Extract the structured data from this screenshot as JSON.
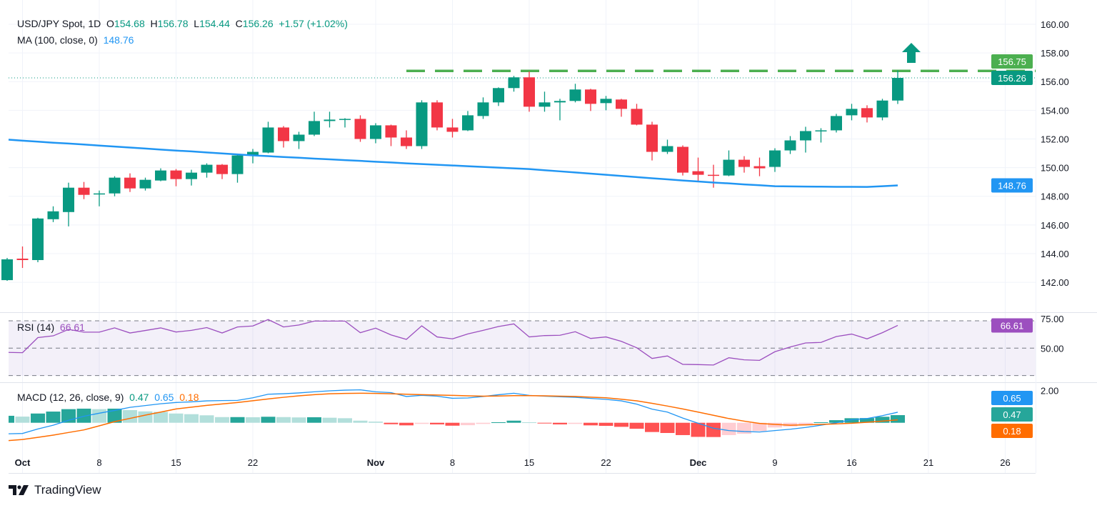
{
  "header": {
    "symbol": "USD/JPY Spot, 1D",
    "open_label": "O",
    "open": "154.68",
    "high_label": "H",
    "high": "156.78",
    "low_label": "L",
    "low": "154.44",
    "close_label": "C",
    "close": "156.26",
    "change": "+1.57 (+1.02%)",
    "ma_label": "MA (100, close, 0)",
    "ma_value": "148.76"
  },
  "rsi_legend": {
    "label": "RSI (14)",
    "value": "66.61"
  },
  "macd_legend": {
    "label": "MACD (12, 26, close, 9)",
    "hist": "0.47",
    "macd": "0.65",
    "signal": "0.18"
  },
  "brand": {
    "name": "TradingView"
  },
  "colors": {
    "up": "#089981",
    "down": "#f23645",
    "ma": "#2196f3",
    "resistance": "#4caf50",
    "rsi": "#9c4fbf",
    "macd": "#2196f3",
    "signal": "#ff6d00",
    "hist_up_strong": "#26a69a",
    "hist_up_weak": "#b2dfdb",
    "hist_down_strong": "#ff5252",
    "hist_down_weak": "#ffcdd2"
  },
  "chart_data": [
    {
      "type": "candlestick",
      "title": "USD/JPY Spot, 1D",
      "ylim": [
        141,
        161.5
      ],
      "y_ticks": [
        "160.00",
        "158.00",
        "156.00",
        "154.00",
        "152.00",
        "150.00",
        "148.00",
        "146.00",
        "144.00",
        "142.00"
      ],
      "x_ticks": [
        {
          "label": "Oct",
          "bar": 1
        },
        {
          "label": "8",
          "bar": 6
        },
        {
          "label": "15",
          "bar": 11
        },
        {
          "label": "22",
          "bar": 16
        },
        {
          "label": "Nov",
          "bar": 24
        },
        {
          "label": "8",
          "bar": 29
        },
        {
          "label": "15",
          "bar": 34
        },
        {
          "label": "22",
          "bar": 39
        },
        {
          "label": "Dec",
          "bar": 45
        },
        {
          "label": "9",
          "bar": 50
        },
        {
          "label": "16",
          "bar": 55
        },
        {
          "label": "21",
          "bar": 60
        },
        {
          "label": "26",
          "bar": 65
        }
      ],
      "ohlc": [
        [
          142.15,
          143.7,
          142.1,
          143.6
        ],
        [
          143.65,
          144.5,
          143.0,
          143.55
        ],
        [
          143.55,
          146.5,
          143.4,
          146.45
        ],
        [
          146.4,
          147.3,
          146.2,
          146.95
        ],
        [
          146.9,
          148.95,
          145.9,
          148.6
        ],
        [
          148.6,
          149.0,
          147.8,
          148.1
        ],
        [
          148.15,
          148.4,
          147.3,
          148.2
        ],
        [
          148.2,
          149.4,
          148.0,
          149.3
        ],
        [
          149.3,
          149.6,
          148.3,
          148.55
        ],
        [
          148.55,
          149.3,
          148.4,
          149.15
        ],
        [
          149.1,
          149.95,
          149.05,
          149.8
        ],
        [
          149.8,
          149.9,
          148.7,
          149.2
        ],
        [
          149.2,
          149.85,
          148.75,
          149.65
        ],
        [
          149.65,
          150.3,
          149.3,
          150.2
        ],
        [
          150.2,
          150.25,
          149.2,
          149.55
        ],
        [
          149.55,
          150.9,
          148.95,
          150.85
        ],
        [
          150.85,
          151.3,
          150.3,
          151.1
        ],
        [
          151.05,
          153.2,
          151.0,
          152.8
        ],
        [
          152.8,
          152.9,
          151.4,
          151.85
        ],
        [
          151.85,
          152.5,
          151.3,
          152.3
        ],
        [
          152.3,
          153.9,
          152.2,
          153.25
        ],
        [
          153.25,
          153.9,
          152.8,
          153.35
        ],
        [
          153.35,
          153.45,
          152.8,
          153.4
        ],
        [
          153.4,
          153.65,
          151.8,
          152.0
        ],
        [
          152.0,
          153.1,
          151.7,
          152.95
        ],
        [
          152.95,
          153.0,
          151.5,
          152.1
        ],
        [
          152.1,
          152.6,
          151.3,
          151.5
        ],
        [
          151.5,
          154.7,
          151.3,
          154.55
        ],
        [
          154.55,
          154.7,
          152.6,
          152.8
        ],
        [
          152.8,
          153.4,
          152.1,
          152.5
        ],
        [
          152.6,
          153.95,
          152.55,
          153.65
        ],
        [
          153.6,
          154.9,
          153.4,
          154.55
        ],
        [
          154.55,
          155.6,
          154.3,
          155.55
        ],
        [
          155.55,
          156.4,
          155.3,
          156.3
        ],
        [
          156.3,
          156.7,
          153.9,
          154.25
        ],
        [
          154.25,
          155.3,
          153.9,
          154.55
        ],
        [
          154.55,
          154.8,
          153.3,
          154.65
        ],
        [
          154.65,
          155.85,
          154.55,
          155.45
        ],
        [
          155.45,
          155.5,
          153.95,
          154.45
        ],
        [
          154.5,
          155.0,
          154.0,
          154.8
        ],
        [
          154.75,
          154.8,
          153.55,
          154.1
        ],
        [
          154.1,
          154.45,
          152.95,
          153.0
        ],
        [
          153.0,
          153.2,
          150.5,
          151.1
        ],
        [
          151.1,
          151.95,
          150.95,
          151.5
        ],
        [
          151.45,
          151.55,
          149.45,
          149.65
        ],
        [
          149.75,
          150.7,
          149.05,
          149.5
        ],
        [
          149.5,
          150.2,
          148.6,
          149.45
        ],
        [
          149.45,
          151.2,
          149.4,
          150.55
        ],
        [
          150.55,
          150.8,
          149.65,
          150.05
        ],
        [
          150.1,
          150.7,
          149.4,
          149.95
        ],
        [
          150.05,
          151.35,
          149.7,
          151.2
        ],
        [
          151.2,
          152.2,
          150.95,
          151.9
        ],
        [
          151.9,
          152.85,
          151.05,
          152.55
        ],
        [
          152.55,
          152.75,
          151.75,
          152.6
        ],
        [
          152.6,
          153.75,
          152.45,
          153.6
        ],
        [
          153.65,
          154.45,
          153.3,
          154.1
        ],
        [
          154.15,
          154.35,
          153.15,
          153.5
        ],
        [
          153.5,
          154.8,
          153.3,
          154.68
        ],
        [
          154.68,
          156.78,
          154.44,
          156.26
        ]
      ],
      "series": [
        {
          "name": "MA (100, close, 0)",
          "values": [
            151.95,
            151.88,
            151.81,
            151.74,
            151.68,
            151.61,
            151.54,
            151.47,
            151.4,
            151.33,
            151.26,
            151.19,
            151.13,
            151.06,
            150.99,
            150.92,
            150.85,
            150.8,
            150.74,
            150.69,
            150.63,
            150.58,
            150.52,
            150.47,
            150.41,
            150.36,
            150.3,
            150.25,
            150.2,
            150.15,
            150.1,
            150.05,
            150.0,
            149.95,
            149.9,
            149.82,
            149.74,
            149.66,
            149.58,
            149.5,
            149.42,
            149.34,
            149.26,
            149.18,
            149.1,
            149.03,
            148.96,
            148.9,
            148.83,
            148.77,
            148.7,
            148.69,
            148.68,
            148.67,
            148.66,
            148.66,
            148.65,
            148.7,
            148.76
          ]
        }
      ],
      "price_labels": [
        {
          "value": "156.75",
          "kind": "resistance"
        },
        {
          "value": "156.26",
          "kind": "last"
        },
        {
          "value": "148.76",
          "kind": "ma"
        }
      ],
      "annotations": {
        "resistance_level": 156.75,
        "resistance_from_bar": 26,
        "last_price": 156.26,
        "arrow": "up"
      }
    },
    {
      "type": "line",
      "title": "RSI (14)",
      "ylim": [
        26.5,
        75.5
      ],
      "y_ticks": [
        "75.00",
        "50.00"
      ],
      "bands": [
        70,
        50,
        30
      ],
      "values": [
        46.9,
        46.7,
        57.7,
        59.0,
        63.7,
        61.7,
        61.7,
        64.8,
        61.1,
        62.9,
        64.8,
        61.8,
        63.0,
        65.0,
        61.1,
        65.5,
        66.2,
        70.9,
        65.5,
        66.9,
        69.8,
        69.8,
        69.8,
        61.3,
        64.6,
        59.7,
        56.4,
        66.3,
        58.2,
        56.8,
        60.4,
        63.0,
        65.8,
        67.7,
        58.2,
        59.2,
        59.4,
        62.0,
        57.1,
        58.2,
        55.0,
        50.3,
        42.5,
        44.3,
        38.2,
        38.0,
        37.7,
        43.0,
        41.5,
        41.1,
        47.4,
        50.9,
        53.8,
        54.2,
        58.5,
        60.3,
        56.8,
        61.3,
        66.61
      ],
      "last_label": "66.61"
    },
    {
      "type": "bar+line",
      "title": "MACD (12, 26, close, 9)",
      "ylim": [
        -1.1,
        2.1
      ],
      "y_ticks": [
        "2.00"
      ],
      "histogram": [
        0.43,
        0.38,
        0.57,
        0.69,
        0.84,
        0.87,
        0.84,
        0.87,
        0.78,
        0.7,
        0.67,
        0.57,
        0.53,
        0.46,
        0.35,
        0.35,
        0.34,
        0.37,
        0.35,
        0.33,
        0.34,
        0.31,
        0.28,
        0.13,
        0.07,
        -0.09,
        -0.16,
        -0.07,
        -0.1,
        -0.18,
        -0.15,
        -0.07,
        0.03,
        0.13,
        0.03,
        -0.04,
        -0.1,
        -0.07,
        -0.16,
        -0.19,
        -0.25,
        -0.37,
        -0.57,
        -0.63,
        -0.76,
        -0.87,
        -0.88,
        -0.76,
        -0.68,
        -0.51,
        -0.29,
        -0.23,
        -0.15,
        0.03,
        0.16,
        0.28,
        0.29,
        0.37,
        0.47
      ],
      "macd": [
        -0.68,
        -0.66,
        -0.38,
        -0.15,
        0.15,
        0.4,
        0.59,
        0.76,
        0.95,
        1.06,
        1.17,
        1.25,
        1.29,
        1.35,
        1.37,
        1.38,
        1.54,
        1.76,
        1.79,
        1.84,
        1.91,
        1.97,
        2.01,
        2.03,
        1.91,
        1.86,
        1.62,
        1.69,
        1.64,
        1.51,
        1.53,
        1.62,
        1.73,
        1.82,
        1.69,
        1.64,
        1.6,
        1.57,
        1.5,
        1.44,
        1.35,
        1.15,
        0.84,
        0.66,
        0.29,
        -0.03,
        -0.34,
        -0.48,
        -0.54,
        -0.57,
        -0.48,
        -0.4,
        -0.29,
        -0.15,
        0.0,
        0.19,
        0.26,
        0.44,
        0.65
      ],
      "signal": [
        -1.1,
        -1.03,
        -0.9,
        -0.76,
        -0.6,
        -0.44,
        -0.19,
        0.07,
        0.27,
        0.47,
        0.66,
        0.85,
        0.96,
        1.07,
        1.16,
        1.25,
        1.36,
        1.47,
        1.57,
        1.66,
        1.73,
        1.79,
        1.81,
        1.82,
        1.81,
        1.79,
        1.76,
        1.73,
        1.71,
        1.69,
        1.66,
        1.64,
        1.65,
        1.67,
        1.67,
        1.66,
        1.64,
        1.62,
        1.58,
        1.54,
        1.45,
        1.35,
        1.2,
        1.03,
        0.85,
        0.66,
        0.46,
        0.26,
        0.1,
        -0.04,
        -0.1,
        -0.15,
        -0.13,
        -0.1,
        -0.07,
        -0.03,
        0.03,
        0.1,
        0.18
      ],
      "last_labels": {
        "macd": "0.65",
        "hist": "0.47",
        "signal": "0.18"
      }
    }
  ]
}
